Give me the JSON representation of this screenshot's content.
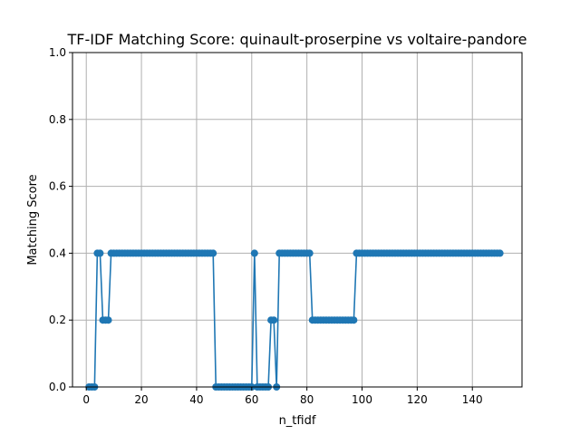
{
  "chart_data": {
    "type": "line",
    "title": "TF-IDF Matching Score: quinault-proserpine vs voltaire-pandore",
    "xlabel": "n_tfidf",
    "ylabel": "Matching Score",
    "xlim": [
      -5,
      158
    ],
    "ylim": [
      0.0,
      1.0
    ],
    "xticks": [
      0,
      20,
      40,
      60,
      80,
      100,
      120,
      140
    ],
    "yticks": [
      0.0,
      0.2,
      0.4,
      0.6,
      0.8,
      1.0
    ],
    "xtick_labels": [
      "0",
      "20",
      "40",
      "60",
      "80",
      "100",
      "120",
      "140"
    ],
    "ytick_labels": [
      "0.0",
      "0.2",
      "0.4",
      "0.6",
      "0.8",
      "1.0"
    ],
    "grid": true,
    "marker": "circle",
    "color": "#1f77b4",
    "series": [
      {
        "x_start": 1,
        "x_step": 1,
        "values": [
          0.0,
          0.0,
          0.0,
          0.4,
          0.4,
          0.2,
          0.2,
          0.2,
          0.4,
          0.4,
          0.4,
          0.4,
          0.4,
          0.4,
          0.4,
          0.4,
          0.4,
          0.4,
          0.4,
          0.4,
          0.4,
          0.4,
          0.4,
          0.4,
          0.4,
          0.4,
          0.4,
          0.4,
          0.4,
          0.4,
          0.4,
          0.4,
          0.4,
          0.4,
          0.4,
          0.4,
          0.4,
          0.4,
          0.4,
          0.4,
          0.4,
          0.4,
          0.4,
          0.4,
          0.4,
          0.4,
          0.0,
          0.0,
          0.0,
          0.0,
          0.0,
          0.0,
          0.0,
          0.0,
          0.0,
          0.0,
          0.0,
          0.0,
          0.0,
          0.0,
          0.4,
          0.0,
          0.0,
          0.0,
          0.0,
          0.0,
          0.2,
          0.2,
          0.0,
          0.4,
          0.4,
          0.4,
          0.4,
          0.4,
          0.4,
          0.4,
          0.4,
          0.4,
          0.4,
          0.4,
          0.4,
          0.2,
          0.2,
          0.2,
          0.2,
          0.2,
          0.2,
          0.2,
          0.2,
          0.2,
          0.2,
          0.2,
          0.2,
          0.2,
          0.2,
          0.2,
          0.2,
          0.4,
          0.4,
          0.4,
          0.4,
          0.4,
          0.4,
          0.4,
          0.4,
          0.4,
          0.4,
          0.4,
          0.4,
          0.4,
          0.4,
          0.4,
          0.4,
          0.4,
          0.4,
          0.4,
          0.4,
          0.4,
          0.4,
          0.4,
          0.4,
          0.4,
          0.4,
          0.4,
          0.4,
          0.4,
          0.4,
          0.4,
          0.4,
          0.4,
          0.4,
          0.4,
          0.4,
          0.4,
          0.4,
          0.4,
          0.4,
          0.4,
          0.4,
          0.4,
          0.4,
          0.4,
          0.4,
          0.4,
          0.4,
          0.4,
          0.4,
          0.4,
          0.4,
          0.4
        ]
      }
    ]
  }
}
